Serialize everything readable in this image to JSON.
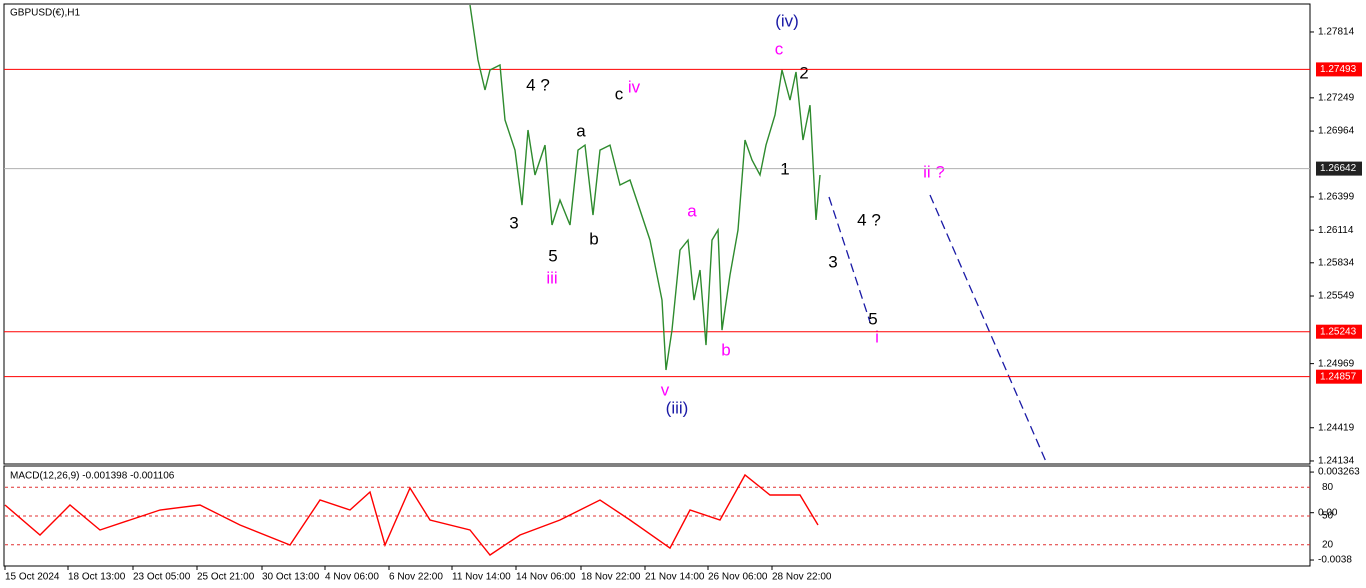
{
  "chart_data": [
    {
      "type": "line",
      "title": "GBPUSD(€),H1",
      "color": "#2e8b2e",
      "x": [
        465,
        473,
        480,
        485,
        495,
        500,
        510,
        517,
        523,
        530,
        540,
        547,
        555,
        565,
        573,
        580,
        588,
        595,
        605,
        615,
        625,
        635,
        645,
        650,
        657,
        661,
        667,
        675,
        683,
        689,
        695,
        701,
        707,
        713,
        717,
        725,
        733,
        740,
        747,
        755,
        761,
        770,
        777,
        785,
        791,
        798,
        805,
        811,
        815
      ],
      "values": [
        1.28045,
        1.27574,
        1.27316,
        1.27488,
        1.27531,
        1.27059,
        1.26801,
        1.26329,
        1.26973,
        1.26587,
        1.26844,
        1.26158,
        1.26372,
        1.26158,
        1.26801,
        1.26844,
        1.26244,
        1.26801,
        1.26844,
        1.26501,
        1.26544,
        1.26287,
        1.26029,
        1.25815,
        1.25514,
        1.24914,
        1.25257,
        1.25943,
        1.26029,
        1.25514,
        1.25772,
        1.25128,
        1.26029,
        1.26115,
        1.25257,
        1.25729,
        1.26115,
        1.26887,
        1.26716,
        1.26587,
        1.26844,
        1.27102,
        1.27488,
        1.2723,
        1.27471,
        1.26887,
        1.27187,
        1.26201,
        1.26587
      ],
      "xlim": [
        0,
        1305
      ],
      "xticks": [
        {
          "value": 0,
          "label": "15 Oct 2024"
        },
        {
          "value": 63,
          "label": "18 Oct 13:00"
        },
        {
          "value": 128,
          "label": "23 Oct 05:00"
        },
        {
          "value": 192,
          "label": "25 Oct 21:00"
        },
        {
          "value": 257,
          "label": "30 Oct 13:00"
        },
        {
          "value": 320,
          "label": "4 Nov 06:00"
        },
        {
          "value": 384,
          "label": "6 Nov 22:00"
        },
        {
          "value": 447,
          "label": "11 Nov 14:00"
        },
        {
          "value": 511,
          "label": "14 Nov 06:00"
        },
        {
          "value": 576,
          "label": "18 Nov 22:00"
        },
        {
          "value": 640,
          "label": "21 Nov 14:00"
        },
        {
          "value": 703,
          "label": "26 Nov 06:00"
        },
        {
          "value": 767,
          "label": "28 Nov 22:00"
        }
      ],
      "ylim": [
        1.24108,
        1.28054
      ],
      "yticks": [
        1.27814,
        1.27249,
        1.26964,
        1.26399,
        1.26114,
        1.25834,
        1.25549,
        1.24969,
        1.24419,
        1.24134
      ],
      "levels": [
        1.27493,
        1.25243,
        1.24857
      ],
      "level_color": "#ff0000",
      "current_price": 1.26642
    },
    {
      "type": "line",
      "title": "MACD(12,26,9) -0.001398 -0.001106",
      "color": "#ff0000",
      "x": [
        0,
        35,
        65,
        95,
        125,
        155,
        195,
        235,
        285,
        315,
        345,
        365,
        380,
        405,
        425,
        465,
        485,
        515,
        555,
        595,
        625,
        665,
        685,
        715,
        740,
        765,
        795,
        813
      ],
      "values": [
        0.00062,
        -0.00179,
        0.00062,
        -0.00139,
        -0.00059,
        0.00022,
        0.00062,
        -0.00099,
        -0.00259,
        0.00102,
        0.00022,
        0.00166,
        -0.00259,
        0.00198,
        -0.00059,
        -0.00139,
        -0.0034,
        -0.00179,
        -0.00059,
        0.00102,
        -0.00059,
        -0.00284,
        0.00022,
        -0.00059,
        0.00303,
        0.00142,
        0.00142,
        -0.00099
      ],
      "xlim": [
        0,
        1305
      ],
      "ylim": [
        -0.0042,
        0.00375
      ],
      "yticks": [
        0.003263,
        {
          "value": 0,
          "label": "0.00"
        },
        -0.0038
      ],
      "y2lim": [
        0,
        100
      ],
      "y2ticks": [
        80,
        50,
        20
      ]
    }
  ],
  "annotations": [
    {
      "text": "(iv)",
      "color": "#1a1aa6"
    },
    {
      "text": "c",
      "color": "#ff00ff"
    },
    {
      "text": "2",
      "color": "#000000"
    },
    {
      "text": "4 ?",
      "color": "#000000"
    },
    {
      "text": "c",
      "color": "#000000"
    },
    {
      "text": "iv",
      "color": "#ff00ff"
    },
    {
      "text": "a",
      "color": "#000000"
    },
    {
      "text": "1",
      "color": "#000000"
    },
    {
      "text": "ii ?",
      "color": "#ff00ff"
    },
    {
      "text": "a",
      "color": "#ff00ff"
    },
    {
      "text": "4 ?",
      "color": "#000000"
    },
    {
      "text": "3",
      "color": "#000000"
    },
    {
      "text": "b",
      "color": "#000000"
    },
    {
      "text": "5",
      "color": "#000000"
    },
    {
      "text": "3",
      "color": "#000000"
    },
    {
      "text": "iii",
      "color": "#ff00ff"
    },
    {
      "text": "5",
      "color": "#000000"
    },
    {
      "text": "i",
      "color": "#ff00ff"
    },
    {
      "text": "b",
      "color": "#ff00ff"
    },
    {
      "text": "v",
      "color": "#ff00ff"
    },
    {
      "text": "(iii)",
      "color": "#1a1aa6"
    }
  ]
}
